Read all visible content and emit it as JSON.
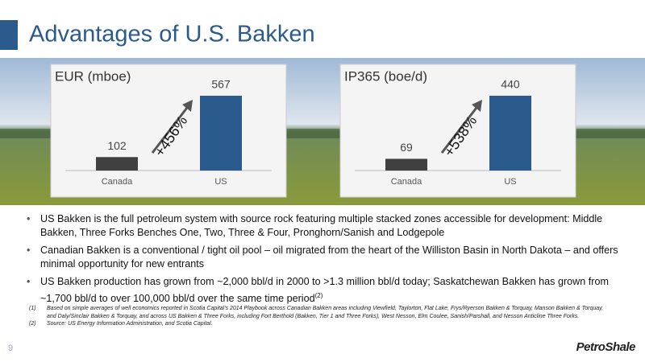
{
  "header": {
    "title": "Advantages of U.S. Bakken"
  },
  "chart_data": [
    {
      "type": "bar",
      "title": "EUR (mboe)",
      "categories": [
        "Canada",
        "US"
      ],
      "values": [
        102,
        567
      ],
      "colors": [
        "#404040",
        "#2b5b8c"
      ],
      "annotation": "+456%"
    },
    {
      "type": "bar",
      "title": "IP365 (boe/d)",
      "categories": [
        "Canada",
        "US"
      ],
      "values": [
        69,
        440
      ],
      "colors": [
        "#404040",
        "#2b5b8c"
      ],
      "annotation": "+538%"
    }
  ],
  "bullets": [
    {
      "text": "US Bakken is the full petroleum system with source rock featuring multiple stacked zones accessible for development: Middle Bakken, Three Forks Benches One, Two, Three & Four, Pronghorn/Sanish and Lodgepole"
    },
    {
      "text": "Canadian Bakken is a conventional / tight oil pool – oil migrated from the heart of the Williston Basin in North Dakota – and offers minimal opportunity for new entrants"
    },
    {
      "text": "US Bakken production has grown from ~2,000 bbl/d in 2000 to >1.3 million bbl/d today; Saskatchewan Bakken has grown from ~1,700 bbl/d to over 100,000 bbl/d over the same time period",
      "note": "(2)"
    }
  ],
  "footnotes": [
    {
      "marker": "(1)",
      "text": "Based on simple averages of well economics reported in Scotia Capital's 2014 Playbook across Canadian Bakken areas including Viewfield, Taylorton, Flat Lake, Frys/Ryerson Bakken & Torquay, Manson Bakken & Torquay, and Daly/Sinclair Bakken & Torquay, and across US Bakken & Three Forks, including Fort Berthold (Bakken, Tier 1 and Three Forks), West Nesson, Elm Coulee, Sanish/Parshall, and Nesson Anticline Three Forks."
    },
    {
      "marker": "(2)",
      "text": "Source: US Energy Information Administration, and Scotia Capital."
    }
  ],
  "page_number": "9",
  "logo": "PetroShale"
}
